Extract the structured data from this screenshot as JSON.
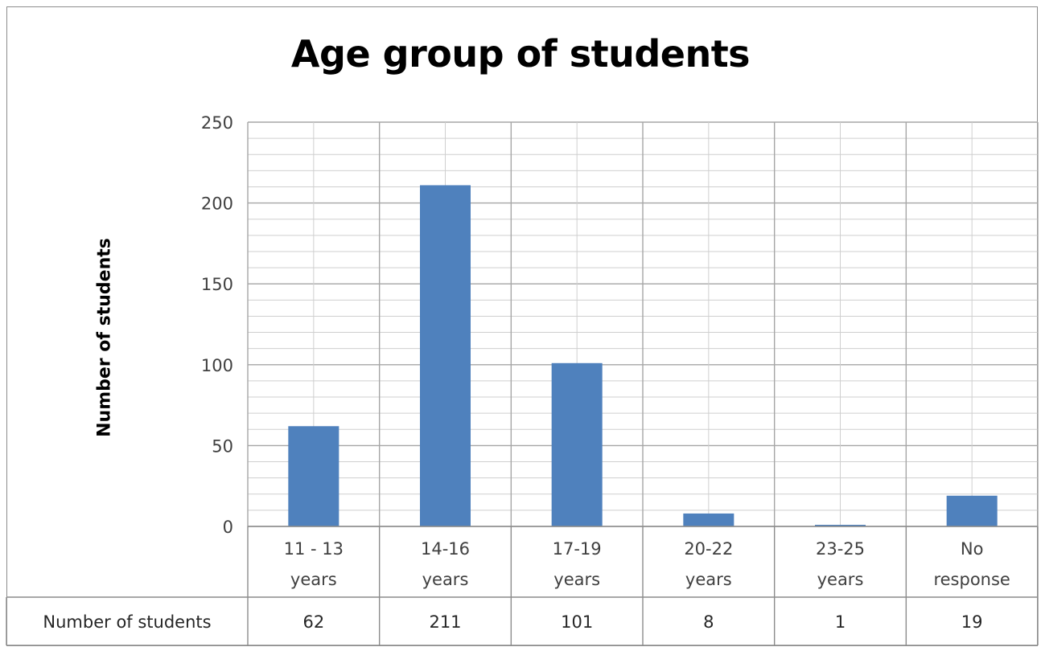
{
  "chart_data": {
    "type": "bar",
    "title": "Age group of students",
    "ylabel": "Number of students",
    "xlabel": "",
    "ylim": [
      0,
      250
    ],
    "y_ticks": [
      0,
      50,
      100,
      150,
      200,
      250
    ],
    "categories": [
      [
        "11 - 13",
        "years"
      ],
      [
        "14-16",
        "years"
      ],
      [
        "17-19",
        "years"
      ],
      [
        "20-22",
        "years"
      ],
      [
        "23-25",
        "years"
      ],
      [
        "No",
        "response"
      ]
    ],
    "series": [
      {
        "name": "Number of students",
        "values": [
          62,
          211,
          101,
          8,
          1,
          19
        ],
        "color": "#4f81bd"
      }
    ],
    "data_table": {
      "row_label": "Number of students",
      "values": [
        "62",
        "211",
        "101",
        "8",
        "1",
        "19"
      ]
    },
    "grid": true,
    "legend": "none"
  }
}
